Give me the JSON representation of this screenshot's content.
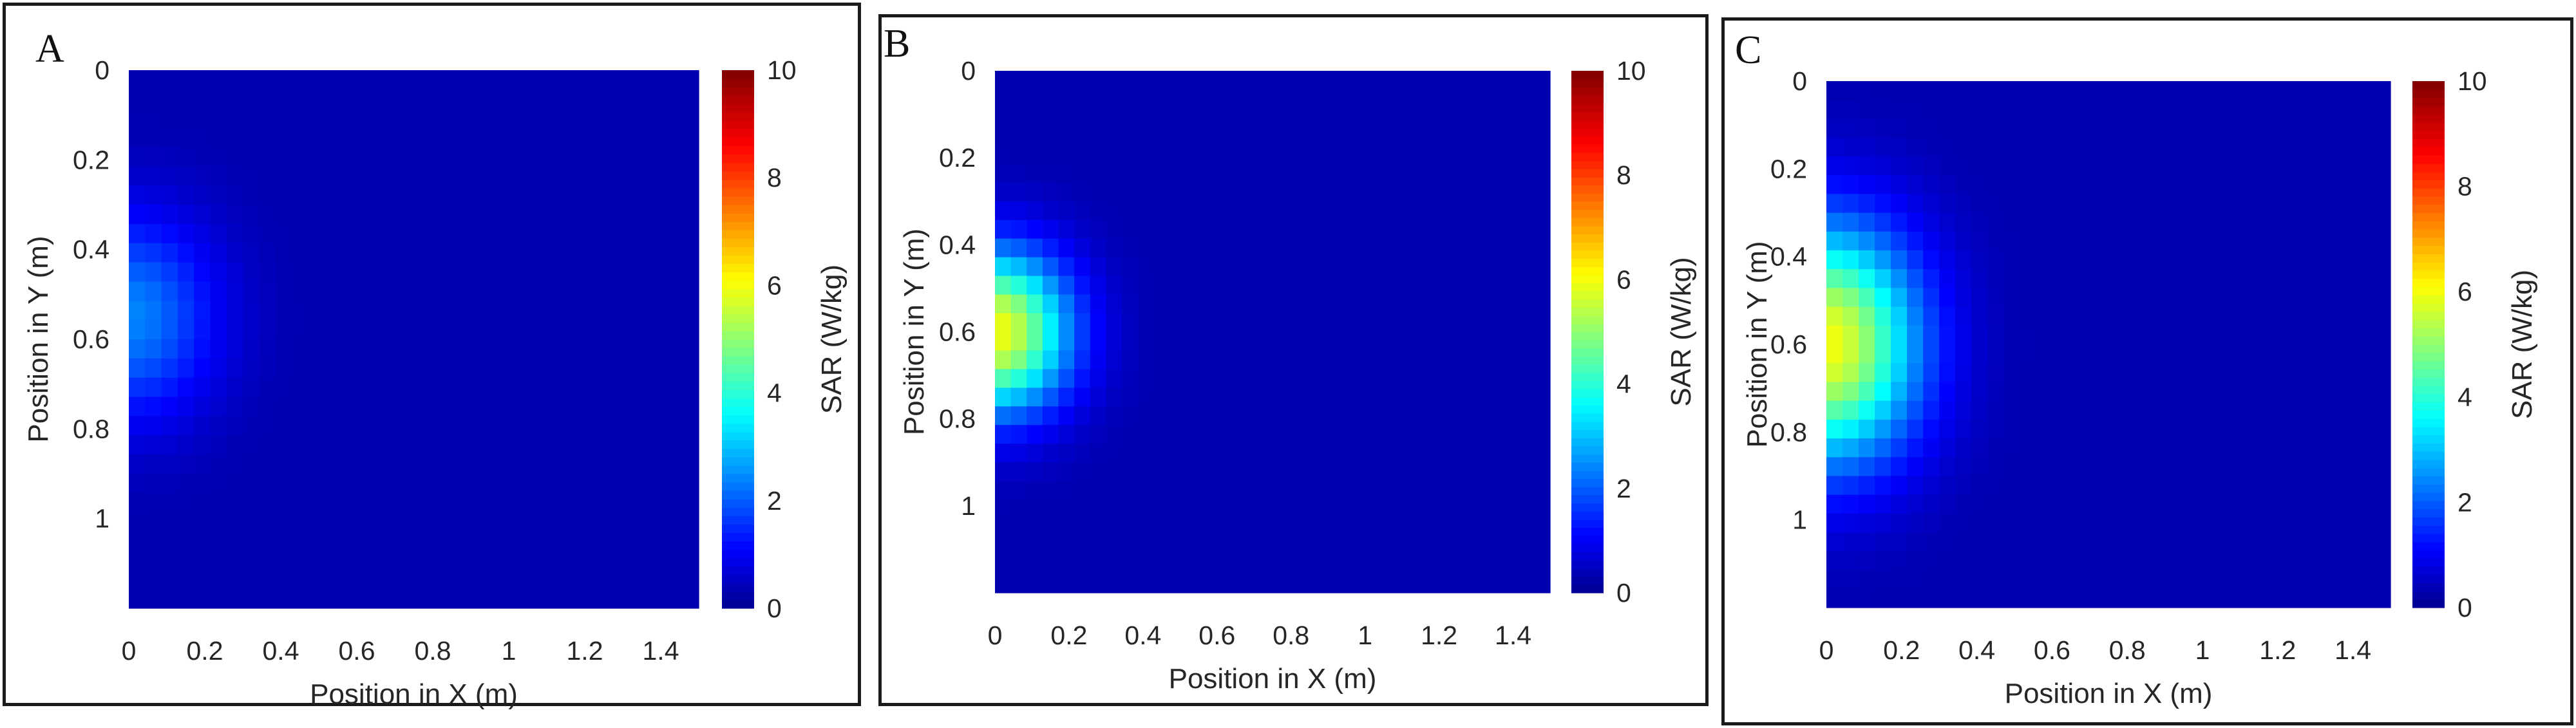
{
  "chart_data": [
    {
      "type": "heatmap",
      "panel_label": "A",
      "xlabel": "Position in X (m)",
      "ylabel": "Position in Y (m)",
      "xlim": [
        0,
        1.5
      ],
      "ylim": [
        0,
        1.2
      ],
      "xticks": [
        "0",
        "0.2",
        "0.4",
        "0.6",
        "0.8",
        "1",
        "1.2",
        "1.4"
      ],
      "yticks": [
        "0",
        "0.2",
        "0.4",
        "0.6",
        "0.8",
        "1"
      ],
      "colorbar": {
        "label": "SAR (W/kg)",
        "range": [
          0,
          10
        ],
        "ticks": [
          "0",
          "2",
          "4",
          "6",
          "8",
          "10"
        ]
      },
      "hotspot": {
        "x": 0.0,
        "y": 0.55,
        "peak_sar": 2.4,
        "spread_x": 0.16,
        "spread_y": 0.16
      }
    },
    {
      "type": "heatmap",
      "panel_label": "B",
      "xlabel": "Position in X (m)",
      "ylabel": "Position in Y (m)",
      "xlim": [
        0,
        1.5
      ],
      "ylim": [
        0,
        1.2
      ],
      "xticks": [
        "0",
        "0.2",
        "0.4",
        "0.6",
        "0.8",
        "1",
        "1.2",
        "1.4"
      ],
      "yticks": [
        "0",
        "0.2",
        "0.4",
        "0.6",
        "0.8",
        "1"
      ],
      "colorbar": {
        "label": "SAR (W/kg)",
        "range": [
          0,
          10
        ],
        "ticks": [
          "0",
          "2",
          "4",
          "6",
          "8",
          "10"
        ]
      },
      "hotspot": {
        "x": 0.0,
        "y": 0.6,
        "peak_sar": 6.0,
        "spread_x": 0.14,
        "spread_y": 0.13
      }
    },
    {
      "type": "heatmap",
      "panel_label": "C",
      "xlabel": "Position in X (m)",
      "ylabel": "Position in Y (m)",
      "xlim": [
        0,
        1.5
      ],
      "ylim": [
        0,
        1.2
      ],
      "xticks": [
        "0",
        "0.2",
        "0.4",
        "0.6",
        "0.8",
        "1",
        "1.2",
        "1.4"
      ],
      "yticks": [
        "0",
        "0.2",
        "0.4",
        "0.6",
        "0.8",
        "1"
      ],
      "colorbar": {
        "label": "SAR (W/kg)",
        "range": [
          0,
          10
        ],
        "ticks": [
          "0",
          "2",
          "4",
          "6",
          "8",
          "10"
        ]
      },
      "hotspot": {
        "x": 0.0,
        "y": 0.6,
        "peak_sar": 6.0,
        "spread_x": 0.17,
        "spread_y": 0.19
      }
    }
  ]
}
